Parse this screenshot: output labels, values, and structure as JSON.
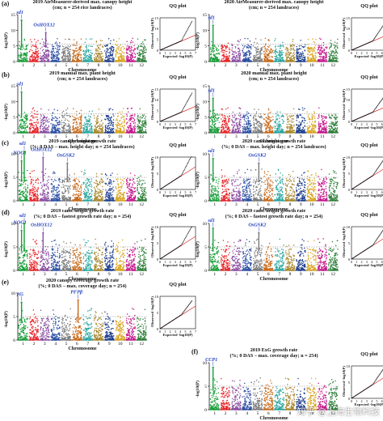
{
  "panel_labels": [
    "(a)",
    "(b)",
    "(c)",
    "(d)",
    "(e)",
    "(f)"
  ],
  "qq_title": "QQ plot",
  "qq_xlabel": "Expected -log10(P)",
  "qq_ylabel": "Observed -log10(P)",
  "manhattan_xlabel": "Chromosome",
  "manhattan_ylabel": "-log10(P)",
  "chromosomes": [
    "1",
    "2",
    "3",
    "4",
    "5",
    "6",
    "7",
    "8",
    "9",
    "10",
    "11",
    "12"
  ],
  "chrom_colors": [
    "#1a9e3a",
    "#e8262a",
    "#8b4fa3",
    "#2b4fa3",
    "#7a7a7a",
    "#c96a1a",
    "#2aa6a0",
    "#a8862a",
    "#1f3f8f",
    "#d9a520",
    "#c4168c",
    "#2e7f3a"
  ],
  "watermark": "知乎 @上海生物科技",
  "chart_data": [
    {
      "type": "scatter",
      "panel": "a-left",
      "title_line1": "2019 AirMeasurer-derived max. canopy height",
      "title_line2": "(cm; n = 254 rice landraces)",
      "ylim": [
        0,
        15
      ],
      "yticks": [
        0,
        5,
        10,
        15
      ],
      "threshold": 5.5,
      "peaks": [
        {
          "gene": "sd1",
          "chr": 1,
          "y": 13.2
        },
        {
          "gene": "OsHOX12",
          "chr": 3,
          "y": 9.2
        }
      ],
      "qq_ylim": [
        0,
        15
      ],
      "qq_yticks": [
        0,
        5,
        10,
        15
      ],
      "qq_xticks": [
        0,
        1,
        2,
        3,
        4,
        5,
        6,
        7
      ]
    },
    {
      "type": "scatter",
      "panel": "a-right",
      "title_line1": "2020 AirMeasurer-derived max. canopy height",
      "title_line2": "(cm; n = 254 landraces)",
      "ylim": [
        0,
        15
      ],
      "yticks": [
        0,
        5,
        10,
        15
      ],
      "threshold": 5.5,
      "peaks": [
        {
          "gene": "sd1",
          "chr": 1,
          "y": 11.5
        }
      ],
      "qq_ylim": [
        0,
        15
      ],
      "qq_yticks": [
        0,
        5,
        10,
        15
      ],
      "qq_xticks": [
        0,
        1,
        2,
        3,
        4,
        5,
        6,
        7
      ]
    },
    {
      "type": "scatter",
      "panel": "b-left",
      "title_line1": "2019 manual max. plant height",
      "title_line2": "(cm; n = 254 landraces)",
      "ylim": [
        0,
        15
      ],
      "yticks": [
        0,
        5,
        10,
        15
      ],
      "threshold": 6,
      "peaks": [
        {
          "gene": "sd1",
          "chr": 1,
          "y": 13
        }
      ],
      "qq_ylim": [
        0,
        15
      ],
      "qq_yticks": [
        0,
        5,
        10,
        15
      ],
      "qq_xticks": [
        0,
        1,
        2,
        3,
        4,
        5,
        6,
        7
      ]
    },
    {
      "type": "scatter",
      "panel": "b-right",
      "title_line1": "2020 manual max. plant height",
      "title_line2": "(cm; n = 254 landraces)",
      "ylim": [
        0,
        15
      ],
      "yticks": [
        0,
        5,
        10,
        15
      ],
      "threshold": 6,
      "peaks": [
        {
          "gene": "sd1",
          "chr": 1,
          "y": 11
        }
      ],
      "qq_ylim": [
        0,
        15
      ],
      "qq_yticks": [
        0,
        5,
        10,
        15
      ],
      "qq_xticks": [
        0,
        1,
        2,
        3,
        4,
        5,
        6,
        7
      ]
    },
    {
      "type": "scatter",
      "panel": "c-left",
      "title_line1": "2019 canopy height growth rate",
      "title_line2": "(%; 0 DAS – max. height day; n = 254 landraces)",
      "ylim": [
        0,
        10
      ],
      "yticks": [
        0,
        5,
        10
      ],
      "threshold": 5,
      "peaks": [
        {
          "gene": "NOG1",
          "chr": 1,
          "y": 8.5
        },
        {
          "gene": "sd1",
          "chr": 1,
          "y": 10.5
        },
        {
          "gene": "OsHOX12",
          "chr": 3,
          "y": 9.2
        },
        {
          "gene": "OsGSK2",
          "chr": 5,
          "y": 8
        }
      ],
      "qq_ylim": [
        0,
        10
      ],
      "qq_yticks": [
        0,
        5,
        10
      ],
      "qq_xticks": [
        0,
        1,
        2,
        3,
        4,
        5,
        6,
        7
      ]
    },
    {
      "type": "scatter",
      "panel": "c-right",
      "title_line1": "2020 cano. height growth rate",
      "title_line2": "(%; 0 DAS – max. height day; n = 254 landraces)",
      "ylim": [
        0,
        10
      ],
      "yticks": [
        0,
        5,
        10
      ],
      "threshold": 5,
      "peaks": [
        {
          "gene": "sd1",
          "chr": 1,
          "y": 9
        },
        {
          "gene": "OsGSK2",
          "chr": 5,
          "y": 8
        }
      ],
      "qq_ylim": [
        0,
        10
      ],
      "qq_yticks": [
        0,
        5,
        10
      ],
      "qq_xticks": [
        0,
        1,
        2,
        3,
        4,
        5,
        6,
        7
      ]
    },
    {
      "type": "scatter",
      "panel": "d-left",
      "title_line1": "2019 cano. height growth rate",
      "title_line2": "(%; 0 DAS – fastest growth rate day; n = 254)",
      "ylim": [
        0,
        10
      ],
      "yticks": [
        0,
        5,
        10
      ],
      "threshold": 5,
      "peaks": [
        {
          "gene": "NOG1",
          "chr": 1,
          "y": 8.5
        },
        {
          "gene": "sd1",
          "chr": 1,
          "y": 10
        },
        {
          "gene": "OsHOX12",
          "chr": 3,
          "y": 8
        }
      ],
      "qq_ylim": [
        0,
        10
      ],
      "qq_yticks": [
        0,
        5,
        10
      ],
      "qq_xticks": [
        0,
        1,
        2,
        3,
        4,
        5,
        6,
        7
      ]
    },
    {
      "type": "scatter",
      "panel": "d-right",
      "title_line1": "2020 cano. height growth rate",
      "title_line2": "(%; 0 DAS – fastest growth rate day; n = 254)",
      "ylim": [
        0,
        10
      ],
      "yticks": [
        0,
        5,
        10
      ],
      "threshold": 5,
      "peaks": [
        {
          "gene": "sd1",
          "chr": 1,
          "y": 9
        },
        {
          "gene": "OsGSK2",
          "chr": 5,
          "y": 8
        }
      ],
      "qq_ylim": [
        0,
        10
      ],
      "qq_yticks": [
        0,
        5,
        10
      ],
      "qq_xticks": [
        0,
        1,
        2,
        3,
        4,
        5,
        6,
        7
      ]
    },
    {
      "type": "scatter",
      "panel": "e-left",
      "title_line1": "2020 canopy coverage growth rate",
      "title_line2": "(%; 0 DAS – max. coverage day; n = 254)",
      "ylim": [
        0,
        10
      ],
      "yticks": [
        0,
        5,
        10
      ],
      "threshold": 5,
      "peaks": [
        {
          "gene": "Pi5",
          "chr": 1,
          "y": 8
        },
        {
          "gene": "PFPβ",
          "chr": 6,
          "y": 8.5
        }
      ],
      "qq_ylim": [
        0,
        10
      ],
      "qq_yticks": [
        0,
        5,
        10
      ],
      "qq_xticks": [
        0,
        1,
        2,
        3,
        4,
        5,
        6,
        7
      ]
    },
    {
      "type": "scatter",
      "panel": "f-right",
      "title_line1": "2019 ExG growth rate",
      "title_line2": "(%; 0 DAS – max. coverage day; n = 254)",
      "ylim": [
        0,
        10
      ],
      "yticks": [
        0,
        5,
        10
      ],
      "threshold": 5,
      "peaks": [
        {
          "gene": "CCP1",
          "chr": 1,
          "y": 9
        }
      ],
      "qq_ylim": [
        0,
        10
      ],
      "qq_yticks": [
        0,
        5,
        10
      ],
      "qq_xticks": [
        0,
        1,
        2,
        3,
        4,
        5,
        6,
        7
      ]
    }
  ]
}
